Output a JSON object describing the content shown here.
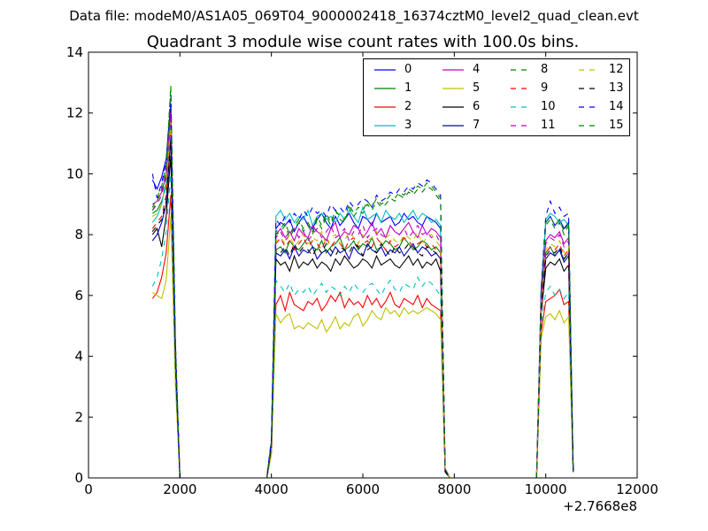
{
  "figure": {
    "suptitle": "Data file: modeM0/AS1A05_069T04_9000002418_16374cztM0_level2_quad_clean.evt",
    "offset_text": "+2.7668e8"
  },
  "chart_data": {
    "type": "line",
    "title": "Quadrant 3 module wise count rates with 100.0s bins.",
    "xlabel": "",
    "ylabel": "",
    "xlim": [
      0,
      12000
    ],
    "ylim": [
      0,
      14
    ],
    "xticks": [
      "0",
      "2000",
      "4000",
      "6000",
      "8000",
      "10000",
      "12000"
    ],
    "yticks": [
      "0",
      "2",
      "4",
      "6",
      "8",
      "10",
      "12",
      "14"
    ],
    "x_offset_label": "+2.7668e8",
    "grid": false,
    "legend": {
      "placement": "top-right",
      "columns": 4
    },
    "x": [
      1400,
      1500,
      1600,
      1700,
      1800,
      1900,
      2000,
      3000,
      3900,
      4000,
      4100,
      4200,
      4300,
      4400,
      4500,
      4600,
      4700,
      4800,
      4900,
      5000,
      5100,
      5200,
      5300,
      5400,
      5500,
      5600,
      5700,
      5800,
      5900,
      6000,
      6100,
      6200,
      6300,
      6400,
      6500,
      6600,
      6700,
      6800,
      6900,
      7000,
      7100,
      7200,
      7300,
      7400,
      7500,
      7600,
      7700,
      7800,
      7900,
      9000,
      9800,
      9900,
      10000,
      10100,
      10200,
      10300,
      10400,
      10500,
      10600
    ],
    "series": [
      {
        "name": "0",
        "color": "#0000ff",
        "dash": "solid",
        "values": [
          9.8,
          9.5,
          9.9,
          10.5,
          12.3,
          4.2,
          0,
          0,
          0,
          1.2,
          8.2,
          8.4,
          8.3,
          8.5,
          8.1,
          8.4,
          8.6,
          8.3,
          8.2,
          8.5,
          8.7,
          8.4,
          8.2,
          8.6,
          8.3,
          8.5,
          8.7,
          8.4,
          8.2,
          8.6,
          8.5,
          8.3,
          8.7,
          8.4,
          8.5,
          8.6,
          8.3,
          8.4,
          8.7,
          8.5,
          8.6,
          8.4,
          8.3,
          8.6,
          8.5,
          8.4,
          8.2,
          0.3,
          0,
          0,
          0,
          6.2,
          8.4,
          8.6,
          8.3,
          8.5,
          8.2,
          8.4,
          0.2
        ]
      },
      {
        "name": "1",
        "color": "#008000",
        "dash": "solid",
        "values": [
          8.7,
          8.8,
          9.1,
          9.6,
          11.8,
          4.1,
          0,
          0,
          0,
          1.1,
          7.5,
          7.6,
          7.4,
          7.8,
          7.6,
          7.5,
          7.7,
          7.9,
          7.6,
          7.5,
          7.8,
          7.4,
          7.6,
          7.7,
          7.9,
          7.5,
          7.6,
          7.8,
          7.5,
          7.7,
          7.6,
          7.9,
          7.5,
          7.6,
          7.8,
          7.7,
          7.5,
          7.6,
          7.9,
          7.7,
          7.5,
          7.6,
          7.8,
          7.7,
          7.5,
          7.6,
          7.4,
          0.2,
          0,
          0,
          0,
          5.6,
          7.4,
          7.6,
          7.3,
          7.5,
          7.2,
          7.4,
          0.2
        ]
      },
      {
        "name": "2",
        "color": "#ff0000",
        "dash": "solid",
        "values": [
          5.9,
          6.1,
          6.6,
          7.4,
          9.3,
          3.3,
          0,
          0,
          0,
          0.8,
          5.7,
          6.0,
          5.5,
          6.1,
          5.7,
          5.6,
          5.5,
          5.8,
          5.7,
          5.9,
          5.5,
          5.7,
          6.0,
          5.8,
          6.1,
          5.6,
          5.9,
          5.7,
          5.8,
          5.6,
          6.0,
          5.7,
          5.9,
          5.6,
          5.8,
          6.1,
          5.7,
          5.6,
          5.9,
          5.8,
          5.7,
          6.0,
          5.6,
          5.9,
          5.7,
          5.6,
          5.5,
          0.2,
          0,
          0,
          0,
          4.8,
          5.8,
          5.9,
          6.0,
          6.2,
          5.7,
          5.8,
          0.2
        ]
      },
      {
        "name": "3",
        "color": "#00bfbf",
        "dash": "solid",
        "values": [
          8.4,
          8.6,
          9.0,
          9.8,
          11.9,
          4.2,
          0,
          0,
          0,
          1.2,
          8.6,
          8.8,
          8.5,
          8.7,
          8.4,
          8.6,
          8.5,
          8.8,
          8.3,
          8.6,
          8.7,
          8.5,
          8.6,
          8.4,
          8.7,
          8.5,
          8.8,
          8.6,
          8.4,
          8.9,
          8.5,
          8.6,
          8.7,
          8.4,
          8.8,
          8.6,
          8.5,
          8.7,
          8.4,
          8.6,
          8.8,
          8.5,
          8.7,
          8.6,
          8.4,
          8.5,
          8.3,
          0.3,
          0,
          0,
          0,
          5.8,
          8.5,
          8.7,
          8.6,
          8.4,
          8.5,
          8.3,
          0.2
        ]
      },
      {
        "name": "4",
        "color": "#bf00bf",
        "dash": "solid",
        "values": [
          9.0,
          9.1,
          9.4,
          10.0,
          12.0,
          4.2,
          0,
          0,
          0,
          1.2,
          8.0,
          8.2,
          7.9,
          8.1,
          7.8,
          8.2,
          8.0,
          7.9,
          8.3,
          8.1,
          8.0,
          7.8,
          8.2,
          8.4,
          7.9,
          8.1,
          8.0,
          8.3,
          8.2,
          7.9,
          8.1,
          8.4,
          8.0,
          8.2,
          7.9,
          8.3,
          8.1,
          8.0,
          8.2,
          8.4,
          8.1,
          7.9,
          8.3,
          8.0,
          8.2,
          8.1,
          7.9,
          0.3,
          0,
          0,
          0,
          5.9,
          7.8,
          8.0,
          7.9,
          8.1,
          7.7,
          7.9,
          0.2
        ]
      },
      {
        "name": "5",
        "color": "#bfbf00",
        "dash": "solid",
        "values": [
          6.1,
          6.0,
          5.9,
          6.5,
          8.6,
          3.1,
          0,
          0,
          0,
          0.8,
          5.4,
          5.1,
          5.3,
          5.4,
          4.9,
          5.0,
          4.9,
          5.1,
          5.0,
          4.9,
          5.2,
          4.8,
          5.0,
          5.3,
          4.9,
          5.1,
          5.0,
          5.3,
          5.4,
          5.0,
          5.2,
          5.5,
          5.3,
          5.2,
          5.6,
          5.4,
          5.5,
          5.3,
          5.6,
          5.4,
          5.5,
          5.4,
          5.5,
          5.6,
          5.5,
          5.4,
          5.2,
          0.2,
          0,
          0,
          0,
          4.6,
          5.3,
          5.4,
          5.2,
          5.5,
          5.1,
          5.3,
          0.2
        ]
      },
      {
        "name": "6",
        "color": "#000000",
        "dash": "solid",
        "values": [
          8.0,
          8.2,
          7.6,
          8.6,
          10.6,
          3.8,
          0,
          0,
          0,
          1.0,
          7.2,
          7.0,
          7.1,
          6.8,
          7.3,
          6.9,
          7.1,
          7.0,
          7.2,
          6.9,
          7.1,
          7.0,
          6.8,
          7.2,
          7.0,
          7.3,
          7.1,
          6.9,
          7.0,
          7.2,
          7.1,
          6.9,
          7.3,
          7.0,
          7.1,
          7.2,
          7.0,
          6.9,
          7.1,
          7.3,
          7.0,
          7.2,
          6.9,
          7.1,
          7.0,
          7.2,
          6.8,
          0.2,
          0,
          0,
          0,
          5.4,
          6.9,
          7.1,
          7.0,
          7.2,
          6.8,
          7.0,
          0.2
        ]
      },
      {
        "name": "7",
        "color": "#0000bf",
        "dash": "solid",
        "values": [
          7.8,
          8.0,
          8.4,
          9.0,
          11.2,
          4.0,
          0,
          0,
          0,
          1.1,
          7.4,
          7.3,
          7.5,
          7.2,
          7.6,
          7.3,
          7.5,
          7.4,
          7.6,
          7.2,
          7.4,
          7.5,
          7.3,
          7.6,
          7.4,
          7.5,
          7.2,
          7.6,
          7.4,
          7.3,
          7.7,
          7.5,
          7.4,
          7.6,
          7.3,
          7.5,
          7.4,
          7.6,
          7.3,
          7.5,
          7.7,
          7.4,
          7.6,
          7.5,
          7.3,
          7.4,
          7.2,
          0.2,
          0,
          0,
          0,
          5.5,
          7.2,
          7.4,
          7.3,
          7.5,
          7.1,
          7.3,
          0.2
        ]
      },
      {
        "name": "8",
        "color": "#008000",
        "dash": "dashed",
        "values": [
          8.9,
          9.2,
          9.6,
          10.3,
          12.8,
          4.5,
          0,
          0,
          0,
          1.2,
          8.0,
          8.1,
          8.3,
          7.9,
          8.2,
          8.4,
          8.1,
          8.3,
          8.0,
          8.5,
          8.2,
          8.6,
          8.3,
          8.8,
          8.5,
          8.4,
          8.9,
          8.6,
          8.8,
          8.7,
          9.0,
          8.8,
          9.1,
          8.9,
          9.0,
          9.2,
          9.1,
          9.3,
          9.2,
          9.4,
          9.3,
          9.5,
          9.4,
          9.6,
          9.5,
          9.3,
          9.1,
          0.3,
          0,
          0,
          0,
          6.0,
          8.3,
          8.5,
          8.2,
          8.4,
          8.0,
          8.3,
          0.2
        ]
      },
      {
        "name": "9",
        "color": "#ff0000",
        "dash": "dashed",
        "values": [
          8.2,
          8.4,
          8.6,
          9.3,
          11.5,
          4.1,
          0,
          0,
          0,
          1.1,
          7.7,
          7.9,
          7.6,
          7.8,
          7.5,
          7.7,
          7.9,
          7.6,
          7.8,
          7.7,
          7.5,
          7.9,
          7.6,
          7.8,
          7.7,
          7.5,
          7.8,
          7.9,
          7.6,
          7.7,
          7.8,
          7.6,
          7.9,
          7.7,
          7.5,
          7.8,
          7.6,
          7.7,
          7.9,
          7.8,
          7.6,
          7.7,
          7.8,
          7.6,
          7.7,
          7.5,
          7.4,
          0.2,
          0,
          0,
          0,
          5.6,
          7.4,
          7.6,
          7.5,
          7.7,
          7.3,
          7.5,
          0.2
        ]
      },
      {
        "name": "10",
        "color": "#00bfbf",
        "dash": "dashed",
        "values": [
          6.3,
          6.6,
          7.2,
          8.1,
          10.0,
          3.6,
          0,
          0,
          0,
          1.0,
          6.5,
          6.3,
          6.1,
          6.4,
          6.0,
          6.2,
          6.1,
          6.3,
          6.0,
          6.2,
          6.4,
          6.1,
          6.3,
          6.2,
          6.0,
          6.3,
          6.1,
          6.4,
          6.2,
          6.1,
          6.3,
          6.4,
          6.2,
          6.0,
          6.3,
          6.5,
          6.2,
          6.1,
          6.4,
          6.3,
          6.2,
          6.6,
          6.3,
          6.5,
          6.4,
          6.2,
          6.0,
          0.2,
          0,
          0,
          0,
          5.0,
          6.1,
          6.3,
          6.0,
          6.2,
          5.9,
          6.1,
          0.2
        ]
      },
      {
        "name": "11",
        "color": "#bf00bf",
        "dash": "dashed",
        "values": [
          8.8,
          9.0,
          9.3,
          9.9,
          12.1,
          4.3,
          0,
          0,
          0,
          1.2,
          7.9,
          8.1,
          7.8,
          8.0,
          8.2,
          7.9,
          8.1,
          7.8,
          8.0,
          8.2,
          7.9,
          8.1,
          8.3,
          7.9,
          8.0,
          8.2,
          7.8,
          8.1,
          8.0,
          8.3,
          7.9,
          8.1,
          8.2,
          8.0,
          7.9,
          8.3,
          8.1,
          8.0,
          8.2,
          7.9,
          8.1,
          8.3,
          8.0,
          8.1,
          7.9,
          8.0,
          7.7,
          0.2,
          0,
          0,
          0,
          5.7,
          7.7,
          7.9,
          7.8,
          8.0,
          7.6,
          7.8,
          0.2
        ]
      },
      {
        "name": "12",
        "color": "#bfbf00",
        "dash": "dashed",
        "values": [
          8.6,
          8.7,
          9.0,
          9.7,
          11.7,
          4.2,
          0,
          0,
          0,
          1.1,
          7.8,
          7.9,
          7.7,
          8.0,
          7.6,
          7.8,
          8.0,
          7.7,
          7.9,
          7.8,
          8.1,
          7.6,
          7.9,
          8.0,
          7.7,
          7.8,
          8.1,
          7.9,
          7.7,
          8.0,
          7.8,
          7.9,
          8.1,
          7.7,
          7.9,
          8.0,
          7.8,
          7.7,
          8.0,
          7.9,
          7.8,
          8.1,
          7.7,
          7.9,
          8.0,
          7.8,
          7.6,
          0.2,
          0,
          0,
          0,
          5.6,
          7.5,
          7.7,
          7.6,
          7.8,
          7.4,
          7.6,
          0.2
        ]
      },
      {
        "name": "13",
        "color": "#000000",
        "dash": "dashed",
        "values": [
          8.1,
          8.3,
          8.5,
          9.1,
          11.1,
          4.0,
          0,
          0,
          0,
          1.1,
          7.5,
          7.4,
          7.6,
          7.3,
          7.7,
          7.4,
          7.6,
          7.5,
          7.3,
          7.6,
          7.4,
          7.7,
          7.5,
          7.3,
          7.6,
          7.5,
          7.4,
          7.7,
          7.6,
          7.3,
          7.5,
          7.6,
          7.4,
          7.7,
          7.5,
          7.3,
          7.6,
          7.4,
          7.5,
          7.7,
          7.6,
          7.4,
          7.3,
          7.6,
          7.5,
          7.4,
          7.2,
          0.2,
          0,
          0,
          0,
          5.4,
          7.3,
          7.5,
          7.4,
          7.6,
          7.2,
          7.4,
          0.2
        ]
      },
      {
        "name": "14",
        "color": "#0000ff",
        "dash": "dashed",
        "values": [
          10.0,
          9.2,
          9.7,
          10.4,
          12.6,
          4.4,
          0,
          0,
          0,
          1.3,
          8.5,
          8.3,
          8.6,
          8.4,
          8.7,
          8.5,
          8.8,
          8.6,
          8.9,
          8.7,
          8.8,
          8.6,
          9.0,
          8.8,
          8.9,
          8.7,
          9.1,
          8.9,
          9.0,
          9.2,
          9.1,
          8.9,
          9.3,
          9.1,
          9.2,
          9.4,
          9.3,
          9.5,
          9.4,
          9.6,
          9.5,
          9.7,
          9.6,
          9.8,
          9.7,
          9.5,
          9.3,
          0.3,
          0,
          0,
          0,
          6.3,
          8.6,
          9.1,
          8.7,
          8.9,
          8.6,
          8.7,
          0.2
        ]
      },
      {
        "name": "15",
        "color": "#008000",
        "dash": "dashed",
        "values": [
          8.8,
          9.1,
          9.5,
          10.2,
          12.9,
          4.5,
          0,
          0,
          0,
          1.2,
          8.1,
          8.2,
          8.4,
          8.0,
          8.3,
          8.5,
          8.2,
          8.4,
          8.1,
          8.6,
          8.3,
          8.7,
          8.4,
          8.8,
          8.6,
          8.5,
          9.0,
          8.7,
          8.9,
          8.8,
          9.1,
          8.9,
          9.2,
          9.0,
          9.1,
          9.3,
          9.2,
          9.4,
          9.3,
          9.5,
          9.4,
          9.6,
          9.5,
          9.7,
          9.6,
          9.4,
          9.2,
          0.3,
          0,
          0,
          0,
          6.1,
          8.4,
          8.6,
          8.3,
          8.5,
          8.1,
          8.4,
          0.2
        ]
      }
    ]
  }
}
